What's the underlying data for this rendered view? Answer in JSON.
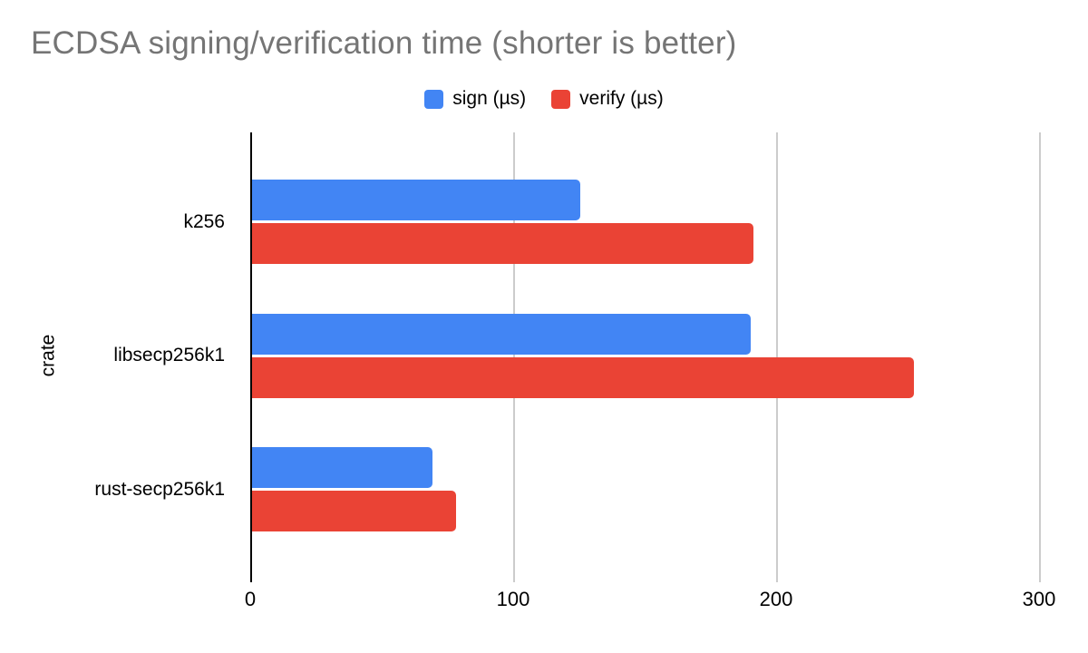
{
  "title": "ECDSA signing/verification time (shorter is better)",
  "chart_data": {
    "type": "bar",
    "orientation": "horizontal",
    "title": "ECDSA signing/verification time (shorter is better)",
    "categories": [
      "k256",
      "libsecp256k1",
      "rust-secp256k1"
    ],
    "series": [
      {
        "name": "sign (µs)",
        "color": "#4285f4",
        "values": [
          125,
          190,
          69
        ]
      },
      {
        "name": "verify (µs)",
        "color": "#ea4335",
        "values": [
          191,
          252,
          78
        ]
      }
    ],
    "xlabel": "",
    "ylabel": "crate",
    "x_ticks": [
      0,
      100,
      200,
      300
    ],
    "xlim": [
      0,
      313
    ],
    "grid": true,
    "legend_position": "top",
    "colors": {
      "title_text": "#757575",
      "axis_label_text": "#000000",
      "gridline": "#cccccc",
      "axis_line": "#000000",
      "background": "#ffffff"
    }
  }
}
